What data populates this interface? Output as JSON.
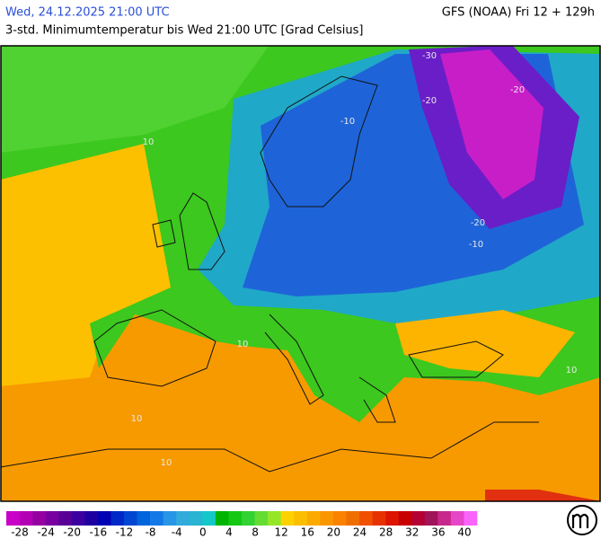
{
  "header": {
    "valid_time": "Wed, 24.12.2025 21:00 UTC",
    "model": "GFS (NOAA) Fri 12 + 129h",
    "subtitle": "3-std. Minimumtemperatur bis Wed 21:00 UTC [Grad Celsius]"
  },
  "contour_labels": [
    "-30",
    "-20",
    "-20",
    "-20",
    "-10",
    "-10",
    "10",
    "10",
    "10",
    "10",
    "10"
  ],
  "legend": {
    "colors": [
      "#c800c8",
      "#b400b4",
      "#9600a0",
      "#7800a0",
      "#5a0096",
      "#3c00a0",
      "#1e00a0",
      "#0000b4",
      "#0028c8",
      "#0046d2",
      "#0064dc",
      "#1478e6",
      "#2896e6",
      "#32aadc",
      "#28b4d2",
      "#14c8c8",
      "#00b400",
      "#14c814",
      "#32d232",
      "#64dc32",
      "#96e628",
      "#fcd200",
      "#fcbe00",
      "#fcaa00",
      "#fa9600",
      "#fa8200",
      "#f06e00",
      "#f05000",
      "#e63200",
      "#dc1400",
      "#c80000",
      "#b40032",
      "#a0145a",
      "#c8288c",
      "#e646c8",
      "#fa64fa"
    ],
    "labels": [
      -28,
      -24,
      -20,
      -16,
      -12,
      -8,
      -4,
      0,
      4,
      8,
      12,
      16,
      20,
      24,
      28,
      32,
      36,
      40
    ]
  }
}
